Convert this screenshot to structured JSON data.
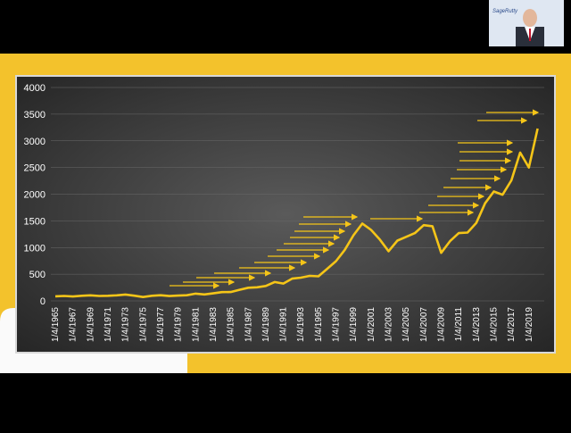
{
  "chart_data": {
    "type": "line",
    "categories": [
      "1/4/1965",
      null,
      "1/4/1967",
      null,
      "1/4/1969",
      null,
      "1/4/1971",
      null,
      "1/4/1973",
      null,
      "1/4/1975",
      null,
      "1/4/1977",
      null,
      "1/4/1979",
      null,
      "1/4/1981",
      null,
      "1/4/1983",
      null,
      "1/4/1985",
      null,
      "1/4/1987",
      null,
      "1/4/1989",
      null,
      "1/4/1991",
      null,
      "1/4/1993",
      null,
      "1/4/1995",
      null,
      "1/4/1997",
      null,
      "1/4/1999",
      null,
      "1/4/2001",
      null,
      "1/4/2003",
      null,
      "1/4/2005",
      null,
      "1/4/2007",
      null,
      "1/4/2009",
      null,
      "1/4/2011",
      null,
      "1/4/2013",
      null,
      "1/4/2015",
      null,
      "1/4/2017",
      null,
      "1/4/2019",
      null
    ],
    "series": [
      {
        "color": "#f5c518",
        "values": [
          85,
          92,
          82,
          96,
          103,
          92,
          95,
          103,
          118,
          97,
          72,
          96,
          105,
          90,
          99,
          106,
          136,
          120,
          140,
          164,
          165,
          207,
          246,
          255,
          280,
          353,
          325,
          417,
          435,
          469,
          460,
          600,
          745,
          955,
          1230,
          1450,
          1330,
          1150,
          930,
          1130,
          1200,
          1270,
          1420,
          1400,
          900,
          1120,
          1270,
          1280,
          1460,
          1830,
          2050,
          1990,
          2260,
          2780,
          2500,
          3230
        ]
      }
    ],
    "ylim": [
      0,
      4000
    ],
    "yticks": [
      0,
      500,
      1000,
      1500,
      2000,
      2500,
      3000,
      3500,
      4000
    ],
    "grid": true
  },
  "webcam_logo": "SageRutty"
}
